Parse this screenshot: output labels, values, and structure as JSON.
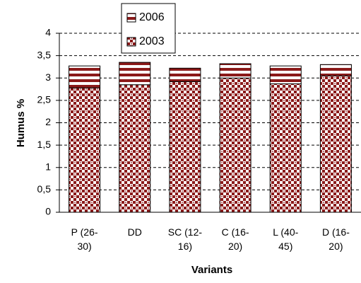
{
  "chart_data": {
    "type": "stacked-bar",
    "x_label": "Variants",
    "y_label": "Humus %",
    "categories": [
      "P (26-30)",
      "DD",
      "SC (12-16)",
      "C (16-20)",
      "L (40-45)",
      "D (16-20)"
    ],
    "series": [
      {
        "name": "2003",
        "color": "#8b1a1a",
        "values": [
          2.78,
          2.85,
          2.92,
          3.0,
          2.87,
          3.05
        ]
      },
      {
        "name": "2006",
        "color": "#8b1a1a",
        "values": [
          0.49,
          0.5,
          0.3,
          0.32,
          0.4,
          0.25
        ]
      }
    ],
    "ylim": [
      0,
      4
    ],
    "yticks": [
      0,
      {
        "value": 0.5,
        "label": "0,5"
      },
      1,
      {
        "value": 1.5,
        "label": "1,5"
      },
      2,
      {
        "value": 2.5,
        "label": "2,5"
      },
      3,
      {
        "value": 3.5,
        "label": "3,5"
      },
      4
    ],
    "grid": true
  }
}
